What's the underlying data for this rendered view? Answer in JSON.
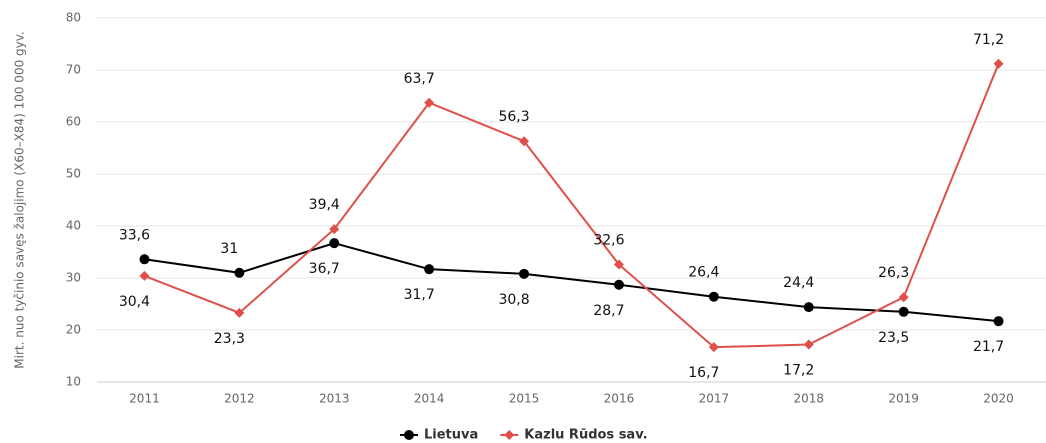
{
  "chart_data": {
    "type": "line",
    "y_axis_label": "Mirt. nuo tyčinio savęs žalojimo (X60–X84) 100 000 gyv.",
    "categories": [
      "2011",
      "2012",
      "2013",
      "2014",
      "2015",
      "2016",
      "2017",
      "2018",
      "2019",
      "2020"
    ],
    "series": [
      {
        "name": "Lietuva",
        "color": "#000000",
        "marker": "circle",
        "values": [
          33.6,
          31,
          36.7,
          31.7,
          30.8,
          28.7,
          26.4,
          24.4,
          23.5,
          21.7
        ],
        "value_labels": [
          "33,6",
          "31",
          "36,7",
          "31,7",
          "30,8",
          "28,7",
          "26,4",
          "24,4",
          "23,5",
          "21,7"
        ]
      },
      {
        "name": "Kazlu Rūdos sav.",
        "color": "#e0504a",
        "marker": "diamond",
        "values": [
          30.4,
          23.3,
          39.4,
          63.7,
          56.3,
          32.6,
          16.7,
          17.2,
          26.3,
          71.2
        ],
        "value_labels": [
          "30,4",
          "23,3",
          "39,4",
          "63,7",
          "56,3",
          "32,6",
          "16,7",
          "17,2",
          "26,3",
          "71,2"
        ]
      }
    ],
    "ylim": [
      10,
      80
    ],
    "yticks": [
      10,
      20,
      30,
      40,
      50,
      60,
      70,
      80
    ],
    "grid": true,
    "legend": "bottom"
  }
}
